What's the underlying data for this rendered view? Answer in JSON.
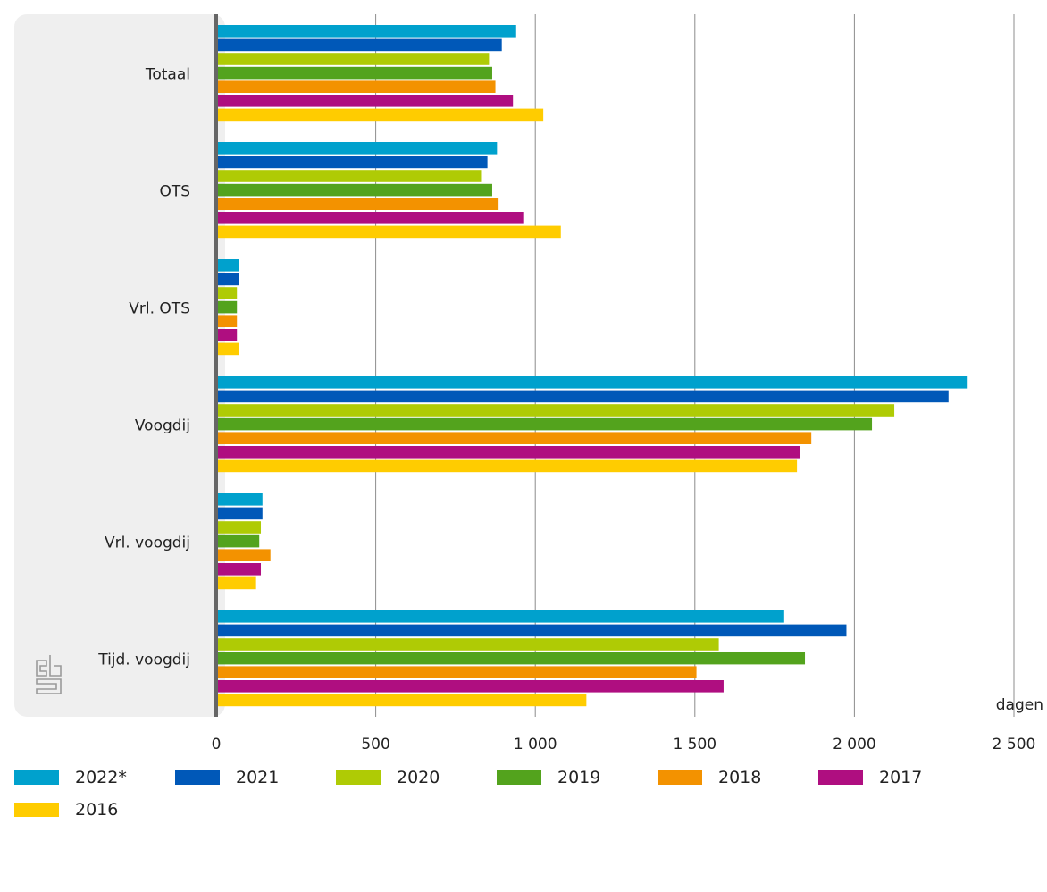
{
  "chart_data": {
    "type": "bar",
    "orientation": "horizontal",
    "categories": [
      "Totaal",
      "OTS",
      "Vrl. OTS",
      "Voogdij",
      "Vrl. voogdij",
      "Tijd. voogdij"
    ],
    "series": [
      {
        "name": "2022*",
        "color": "#00a1cd",
        "values": [
          940,
          880,
          70,
          2355,
          145,
          1780
        ]
      },
      {
        "name": "2021",
        "color": "#0058b8",
        "values": [
          895,
          850,
          70,
          2295,
          145,
          1975
        ]
      },
      {
        "name": "2020",
        "color": "#afcb05",
        "values": [
          855,
          830,
          65,
          2125,
          140,
          1575
        ]
      },
      {
        "name": "2019",
        "color": "#53a31d",
        "values": [
          865,
          865,
          65,
          2055,
          135,
          1845
        ]
      },
      {
        "name": "2018",
        "color": "#f39200",
        "values": [
          875,
          885,
          65,
          1865,
          170,
          1505
        ]
      },
      {
        "name": "2017",
        "color": "#af0e80",
        "values": [
          930,
          965,
          65,
          1830,
          140,
          1590
        ]
      },
      {
        "name": "2016",
        "color": "#ffcc00",
        "values": [
          1025,
          1080,
          70,
          1820,
          125,
          1160
        ]
      }
    ],
    "xlim": [
      0,
      2500
    ],
    "xticks": [
      0,
      500,
      1000,
      1500,
      2000,
      2500
    ],
    "xtick_labels": [
      "0",
      "500",
      "1 000",
      "1 500",
      "2 000",
      "2 500"
    ],
    "xlabel": "dagen",
    "title": "",
    "grid": true,
    "legend_position": "bottom"
  },
  "logo": {
    "text": "cbs",
    "icon": "cbs-logo-icon"
  }
}
